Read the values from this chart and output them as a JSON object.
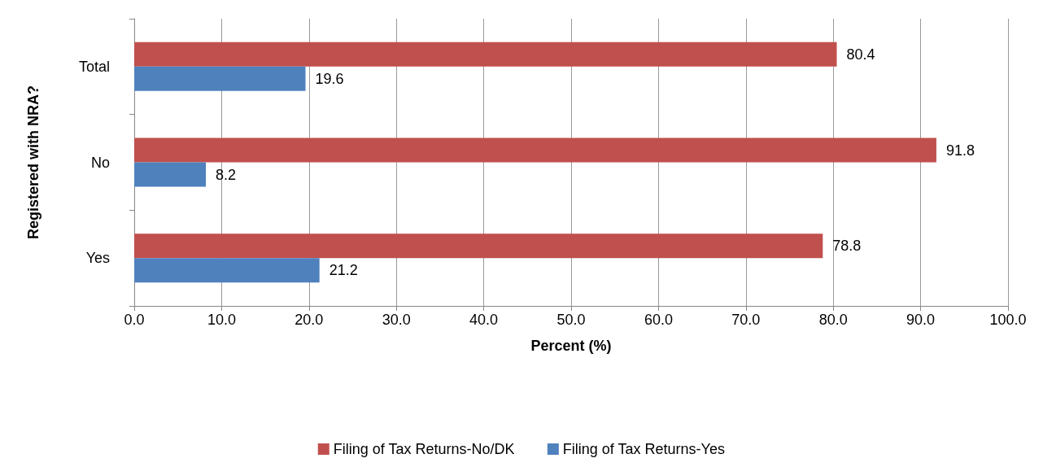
{
  "chart_data": {
    "type": "bar",
    "orientation": "horizontal",
    "xlabel": "Percent (%)",
    "ylabel": "Registered with NRA?",
    "categories": [
      "Total",
      "No",
      "Yes"
    ],
    "series": [
      {
        "name": "Filing of Tax Returns-No/DK",
        "color": "#c0504d",
        "values": [
          80.4,
          91.8,
          78.8
        ]
      },
      {
        "name": "Filing of Tax Returns-Yes",
        "color": "#4f81bd",
        "values": [
          19.6,
          8.2,
          21.2
        ]
      }
    ],
    "xlim": [
      0,
      100
    ],
    "xticks": [
      {
        "value": 0,
        "label": "0.0"
      },
      {
        "value": 10,
        "label": "10.0"
      },
      {
        "value": 20,
        "label": "20.0"
      },
      {
        "value": 30,
        "label": "30.0"
      },
      {
        "value": 40,
        "label": "40.0"
      },
      {
        "value": 50,
        "label": "50.0"
      },
      {
        "value": 60,
        "label": "60.0"
      },
      {
        "value": 70,
        "label": "70.0"
      },
      {
        "value": 80,
        "label": "80.0"
      },
      {
        "value": 90,
        "label": "90.0"
      },
      {
        "value": 100,
        "label": "100.0"
      }
    ],
    "grid": "x",
    "legend": "bottom",
    "data_labels": true
  }
}
